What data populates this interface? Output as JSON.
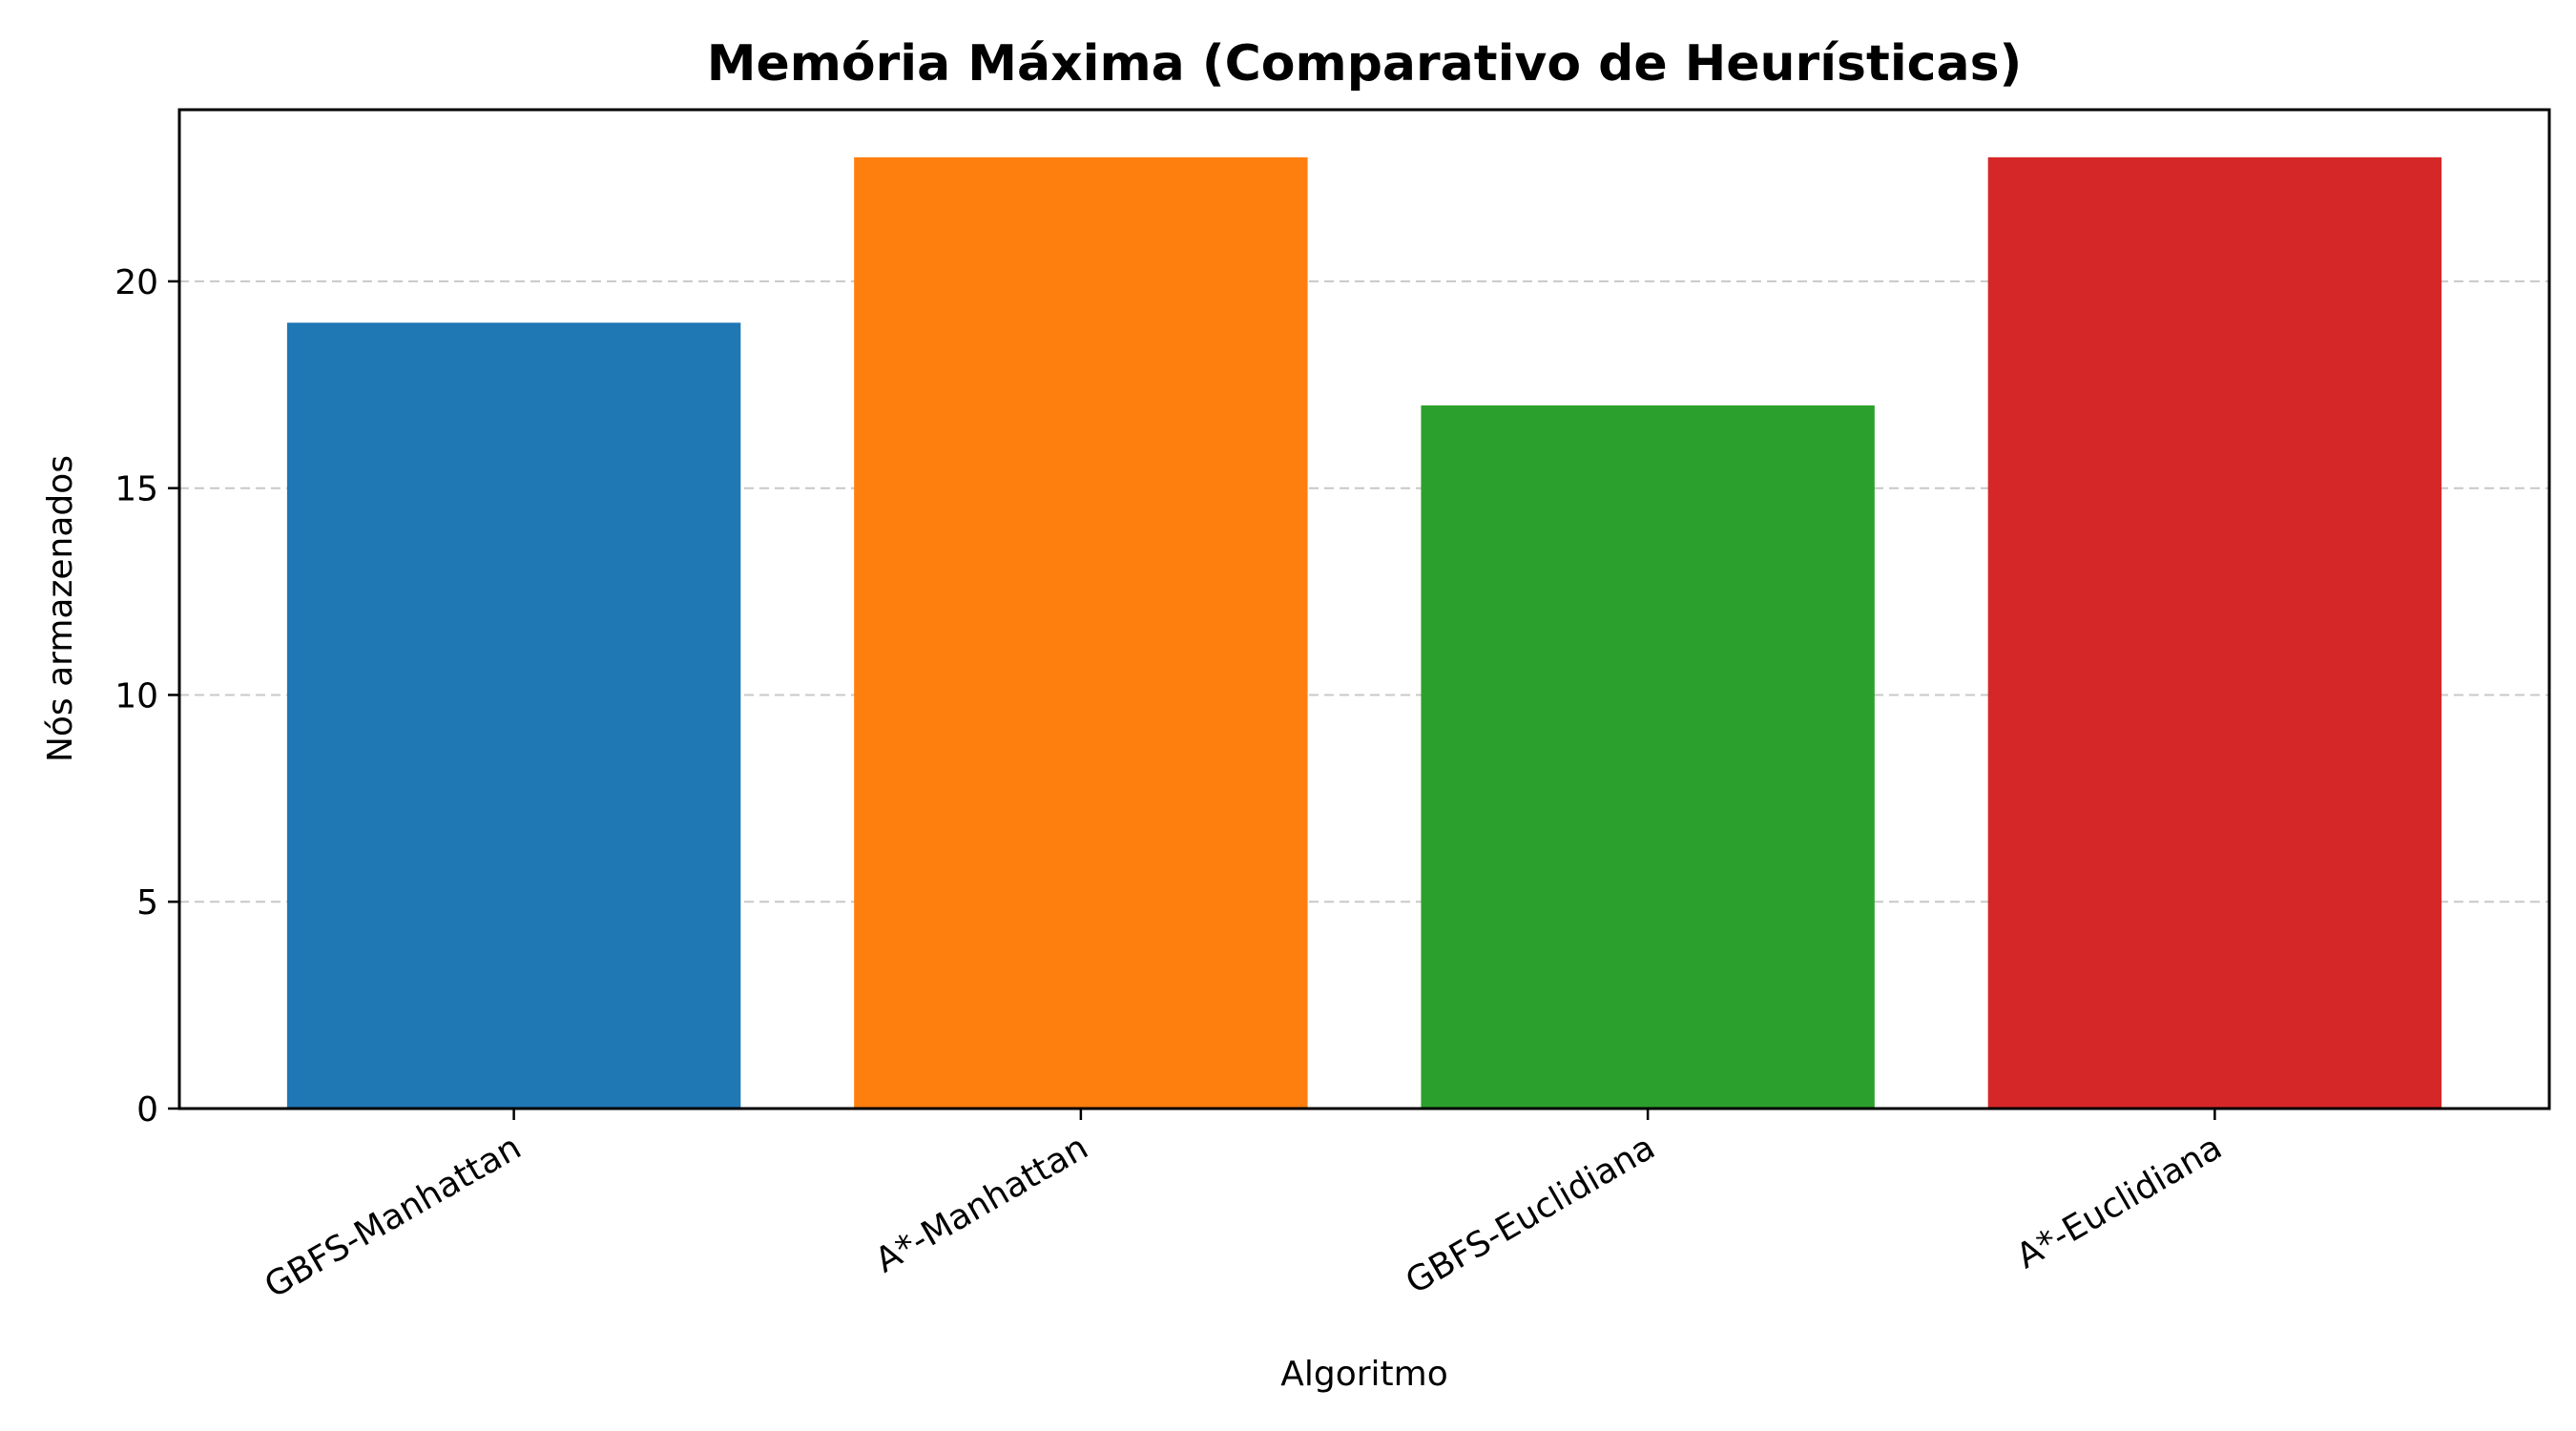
{
  "chart_data": {
    "type": "bar",
    "title": "Memória Máxima (Comparativo de Heurísticas)",
    "xlabel": "Algoritmo",
    "ylabel": "Nós armazenados",
    "categories": [
      "GBFS-Manhattan",
      "A*-Manhattan",
      "GBFS-Euclidiana",
      "A*-Euclidiana"
    ],
    "values": [
      19,
      23,
      17,
      23
    ],
    "colors": [
      "#1f77b4",
      "#ff7f0e",
      "#2ca02c",
      "#d62728"
    ],
    "ylim": [
      0,
      24.15
    ],
    "yticks": [
      0,
      5,
      10,
      15,
      20
    ],
    "grid": "y-dashed",
    "legend": "none"
  }
}
